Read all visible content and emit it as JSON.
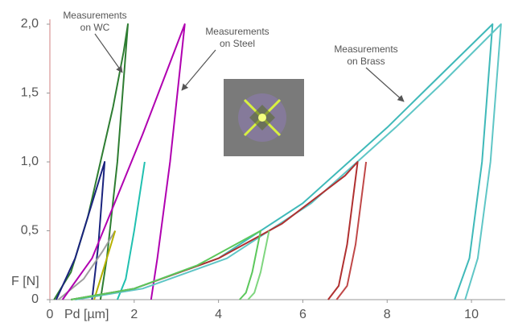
{
  "chart_data": {
    "type": "line",
    "x_label": "Pd [µm]",
    "y_label": "F [N]",
    "xlim": [
      0,
      10.8
    ],
    "ylim": [
      0,
      2.0
    ],
    "xticks": [
      0,
      2,
      4,
      6,
      8,
      10
    ],
    "yticks": [
      {
        "value": 0,
        "label": "0"
      },
      {
        "value": 0.5,
        "label": "0,5"
      },
      {
        "value": 1.0,
        "label": "1,0"
      },
      {
        "value": 1.5,
        "label": "1,5"
      },
      {
        "value": 2.0,
        "label": "2,0"
      }
    ],
    "annotations": [
      [
        "Measurements",
        "on WC"
      ],
      [
        "Measurements",
        "on Steel"
      ],
      [
        "Measurements",
        "on Brass"
      ]
    ],
    "series": [
      {
        "color": "#2e7d32",
        "x": [
          0.1,
          0.5,
          0.9,
          1.2,
          1.5,
          1.75,
          1.85,
          1.6,
          1.35,
          1.2
        ],
        "values": [
          0,
          0.2,
          0.6,
          1.0,
          1.4,
          1.8,
          2.0,
          1.0,
          0.3,
          0
        ]
      },
      {
        "color": "#1a237e",
        "x": [
          0.15,
          0.6,
          1.0,
          1.3,
          1.15,
          1.0
        ],
        "values": [
          0,
          0.3,
          0.7,
          1.0,
          0.4,
          0
        ],
        "w": 1.5
      },
      {
        "color": "#9e9e9e",
        "x": [
          0.2,
          0.8,
          1.25,
          1.55
        ],
        "values": [
          0,
          0.15,
          0.35,
          0.5
        ]
      },
      {
        "color": "#b5b000",
        "x": [
          1.55,
          1.35,
          1.15,
          1.05
        ],
        "values": [
          0.5,
          0.3,
          0.1,
          0
        ]
      },
      {
        "color": "#b000b0",
        "x": [
          0.3,
          1.0,
          1.6,
          2.2,
          2.7,
          3.2,
          2.85,
          2.55,
          2.4
        ],
        "values": [
          0,
          0.3,
          0.75,
          1.2,
          1.6,
          2.0,
          1.0,
          0.3,
          0
        ]
      },
      {
        "color": "#20c0b0",
        "x": [
          2.25,
          2.0,
          1.8,
          1.6
        ],
        "values": [
          1.0,
          0.5,
          0.15,
          0
        ]
      },
      {
        "color": "#3fb9b9",
        "x": [
          0.5,
          2.0,
          4.0,
          6.0,
          8.0,
          9.0,
          10.5,
          10.25,
          9.95,
          9.6
        ],
        "values": [
          0,
          0.08,
          0.3,
          0.7,
          1.25,
          1.55,
          2.0,
          1.0,
          0.3,
          0
        ]
      },
      {
        "color": "#5fc6c6",
        "x": [
          0.6,
          2.2,
          4.2,
          6.2,
          8.2,
          9.3,
          10.7,
          10.45,
          10.15,
          9.85
        ],
        "values": [
          0,
          0.08,
          0.3,
          0.7,
          1.25,
          1.57,
          2.0,
          1.0,
          0.3,
          0
        ]
      },
      {
        "color": "#b03030",
        "x": [
          0.5,
          2.0,
          4.0,
          5.5,
          7.0,
          7.3,
          7.05,
          6.85,
          6.6
        ],
        "values": [
          0,
          0.08,
          0.3,
          0.55,
          0.9,
          1.0,
          0.4,
          0.1,
          0
        ]
      },
      {
        "color": "#c04848",
        "x": [
          7.5,
          7.25,
          7.05,
          6.8
        ],
        "values": [
          1.0,
          0.4,
          0.1,
          0
        ]
      },
      {
        "color": "#5cc85c",
        "x": [
          0.5,
          2.0,
          3.5,
          5.0,
          4.8,
          4.65,
          4.5
        ],
        "values": [
          0,
          0.08,
          0.25,
          0.5,
          0.2,
          0.05,
          0
        ]
      },
      {
        "color": "#7fd67f",
        "x": [
          5.2,
          5.0,
          4.85,
          4.7
        ],
        "values": [
          0.5,
          0.2,
          0.05,
          0
        ]
      }
    ]
  }
}
